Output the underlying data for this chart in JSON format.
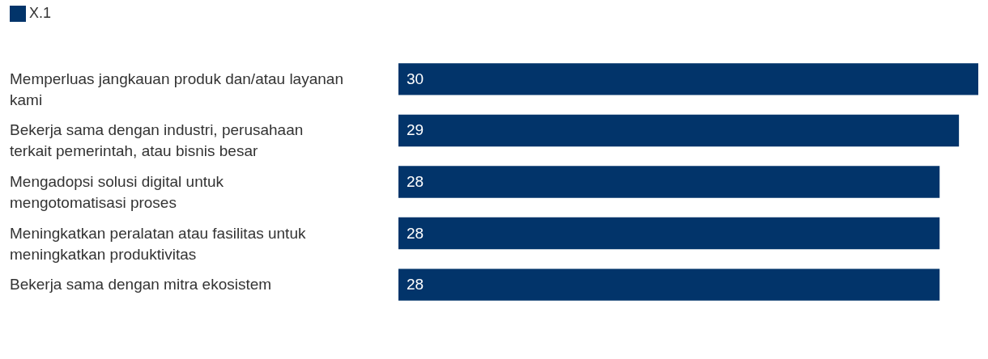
{
  "chart_data": {
    "type": "bar",
    "orientation": "horizontal",
    "categories": [
      "Memperluas jangkauan produk dan/atau layanan kami",
      "Bekerja sama dengan industri, perusahaan terkait pemerintah, atau bisnis besar",
      "Mengadopsi solusi digital untuk mengotomatisasi proses",
      "Meningkatkan peralatan atau fasilitas untuk meningkatkan produktivitas",
      "Bekerja sama dengan mitra ekosistem"
    ],
    "series": [
      {
        "name": "X.1",
        "color": "#02346a",
        "values": [
          30,
          29,
          28,
          28,
          28
        ]
      }
    ],
    "data_labels": true,
    "legend": "top left",
    "tick_labels": false
  }
}
